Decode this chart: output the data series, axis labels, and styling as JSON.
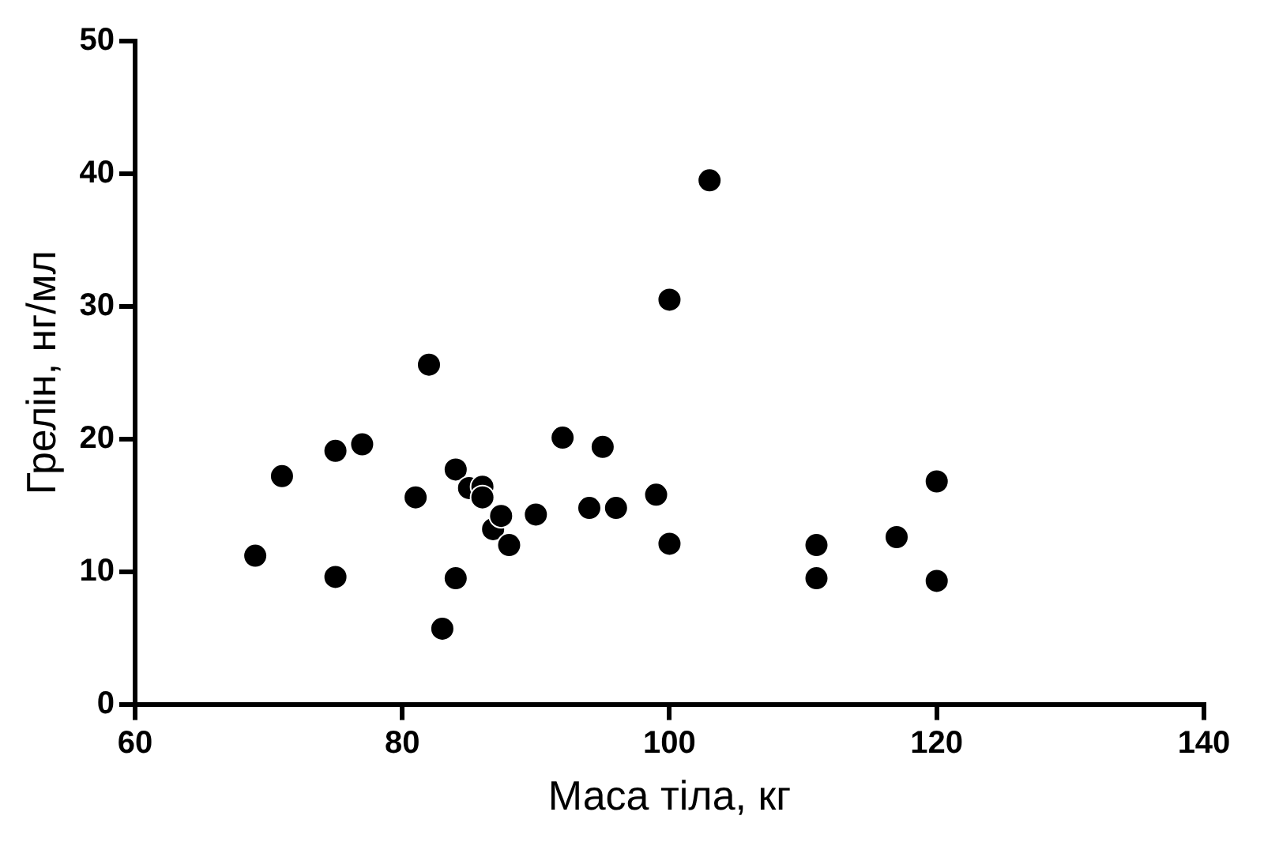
{
  "chart_data": {
    "type": "scatter",
    "xlabel": "Маса тіла, кг",
    "ylabel": "Грелін, нг/мл",
    "x": [
      69,
      71,
      75,
      75,
      77,
      81,
      82,
      83,
      84,
      84,
      85,
      86,
      86,
      86.8,
      87.4,
      88,
      90,
      92,
      94,
      95,
      96,
      99,
      100,
      100,
      103,
      111,
      111,
      117,
      120,
      120
    ],
    "values": [
      11.2,
      17.2,
      9.6,
      19.1,
      19.6,
      15.6,
      25.6,
      5.7,
      17.7,
      9.5,
      16.3,
      16.4,
      15.6,
      13.2,
      14.2,
      12,
      14.3,
      20.1,
      14.8,
      19.4,
      14.8,
      15.8,
      30.5,
      12.1,
      39.5,
      12,
      9.5,
      12.6,
      16.8,
      9.3
    ],
    "color": "#000000",
    "marker": "circle",
    "grid": false,
    "legend": false,
    "xlim": [
      60,
      140
    ],
    "xticks": [
      60,
      80,
      100,
      120,
      140
    ],
    "ylim": [
      0,
      50
    ],
    "yticks": [
      0,
      10,
      20,
      30,
      40,
      50
    ]
  }
}
